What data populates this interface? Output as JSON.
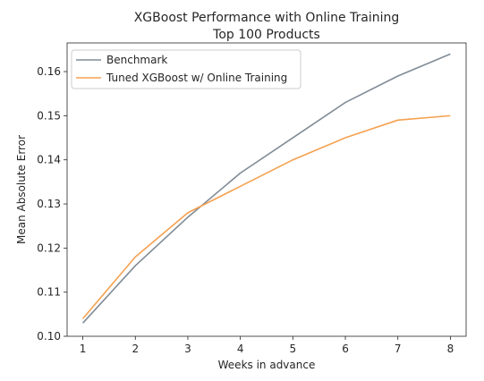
{
  "chart_data": {
    "type": "line",
    "title_lines": [
      "XGBoost Performance with Online Training",
      "Top 100 Products"
    ],
    "xlabel": "Weeks in advance",
    "ylabel": "Mean Absolute Error",
    "x": [
      1,
      2,
      3,
      4,
      5,
      6,
      7,
      8
    ],
    "x_ticks": [
      "1",
      "2",
      "3",
      "4",
      "5",
      "6",
      "7",
      "8"
    ],
    "y_ticks": [
      "0.10",
      "0.11",
      "0.12",
      "0.13",
      "0.14",
      "0.15",
      "0.16"
    ],
    "xlim": [
      0.7,
      8.3
    ],
    "ylim": [
      0.1,
      0.1665
    ],
    "grid": false,
    "legend_position": "top-left",
    "series": [
      {
        "name": "Benchmark",
        "color": "#808b96",
        "values": [
          0.103,
          0.116,
          0.127,
          0.137,
          0.145,
          0.153,
          0.159,
          0.164
        ]
      },
      {
        "name": "Tuned XGBoost w/ Online Training",
        "color": "#f5a150",
        "values": [
          0.104,
          0.118,
          0.128,
          0.134,
          0.14,
          0.145,
          0.149,
          0.15
        ]
      }
    ]
  }
}
